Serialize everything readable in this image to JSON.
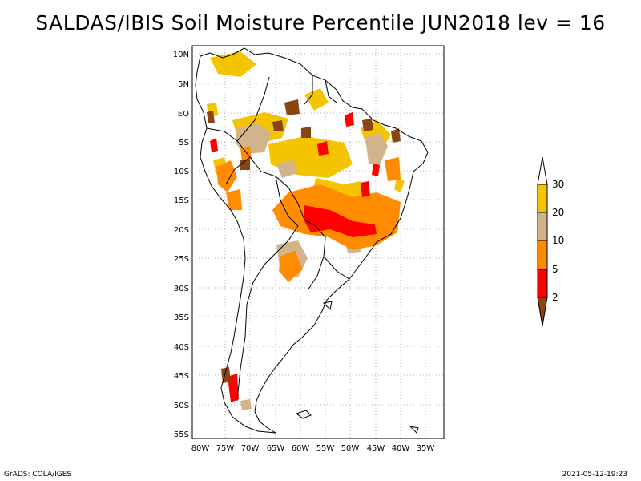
{
  "title": "SALDAS/IBIS Soil Moisture Percentile JUN2018 lev = 16",
  "map": {
    "lat_labels": [
      "10N",
      "5N",
      "EQ",
      "5S",
      "10S",
      "15S",
      "20S",
      "25S",
      "30S",
      "35S",
      "40S",
      "45S",
      "50S",
      "55S"
    ],
    "lon_labels": [
      "80W",
      "75W",
      "70W",
      "65W",
      "60W",
      "55W",
      "50W",
      "45W",
      "40W",
      "35W"
    ],
    "grid": "dotted"
  },
  "legend": {
    "labels": [
      "30",
      "20",
      "10",
      "5",
      "2"
    ],
    "colors": {
      "above_30": "#ffffff",
      "20_30": "#f5c400",
      "10_20": "#d2b48c",
      "5_10": "#ff8c00",
      "2_5": "#ff0000",
      "below_2": "#8b4513"
    }
  },
  "footer": {
    "left": "GrADS: COLA/IGES",
    "right": "2021-05-12-19:23"
  }
}
